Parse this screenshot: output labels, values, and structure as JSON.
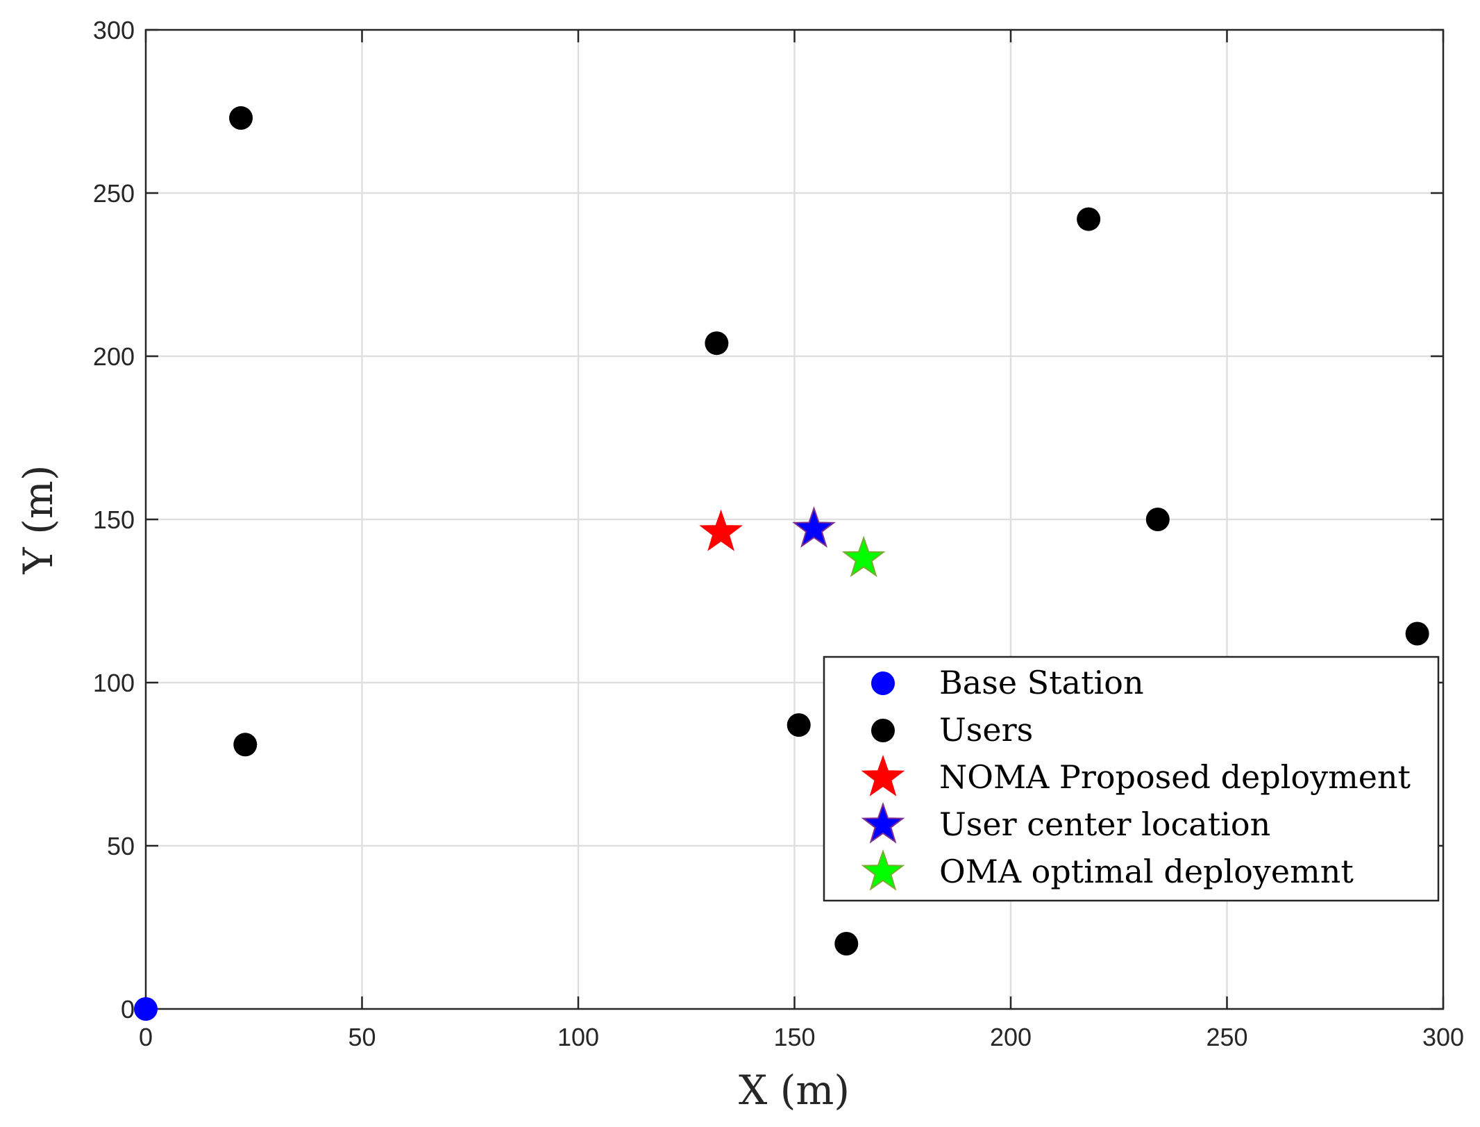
{
  "chart_data": {
    "type": "scatter",
    "title": "",
    "xlabel": "X (m)",
    "ylabel": "Y (m)",
    "xlim": [
      0,
      300
    ],
    "ylim": [
      0,
      300
    ],
    "xticks": [
      0,
      50,
      100,
      150,
      200,
      250,
      300
    ],
    "yticks": [
      0,
      50,
      100,
      150,
      200,
      250,
      300
    ],
    "grid": true,
    "legend_position": "lower-right",
    "series": [
      {
        "name": "Base Station",
        "marker": "circle",
        "color": "#0000ff",
        "points": [
          [
            0,
            0
          ]
        ]
      },
      {
        "name": "Users",
        "marker": "circle",
        "color": "#000000",
        "points": [
          [
            22,
            273
          ],
          [
            23,
            81
          ],
          [
            132,
            204
          ],
          [
            151,
            87
          ],
          [
            162,
            20
          ],
          [
            218,
            242
          ],
          [
            234,
            150
          ],
          [
            294,
            115
          ]
        ]
      },
      {
        "name": "NOMA Proposed deployment",
        "marker": "star",
        "color": "#ff0000",
        "edge": "#ff0000",
        "points": [
          [
            133,
            146
          ]
        ]
      },
      {
        "name": "User center location",
        "marker": "star",
        "color": "#0000ff",
        "edge": "#7e2f8e",
        "points": [
          [
            154.5,
            147
          ]
        ]
      },
      {
        "name": "OMA optimal deployemnt",
        "marker": "star",
        "color": "#00ff00",
        "edge": "#77ac30",
        "points": [
          [
            166,
            138
          ]
        ]
      }
    ]
  }
}
